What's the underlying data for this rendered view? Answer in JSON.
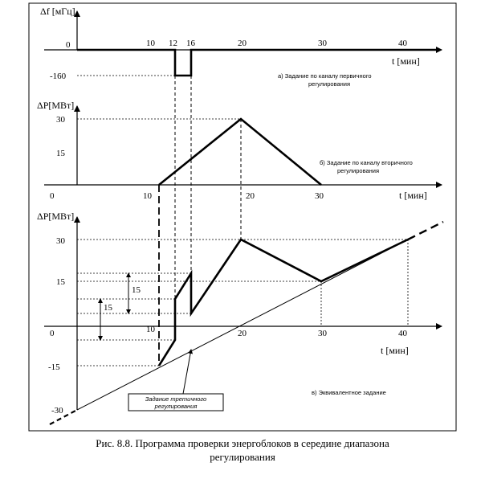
{
  "caption": {
    "line1": "Рис. 8.8. Программа проверки энергоблоков в середине диапазона",
    "line2": "регулирования"
  },
  "chart_data": [
    {
      "id": "a",
      "type": "line",
      "ylabel": "Δf [мГц]",
      "xlabel": "t [мин]",
      "annotation": [
        "а) Задание по каналу первичного",
        "регулирования"
      ],
      "x_ticks": [
        "10",
        "12",
        "16",
        "20",
        "30",
        "40"
      ],
      "y_ticks": [
        "0",
        "-160"
      ],
      "xlim": [
        0,
        45
      ],
      "ylim": [
        -160,
        0
      ],
      "series": [
        {
          "x": [
            0,
            12,
            12,
            14,
            14,
            45
          ],
          "y": [
            0,
            0,
            -160,
            -160,
            0,
            0
          ]
        }
      ]
    },
    {
      "id": "b",
      "type": "line",
      "ylabel": "ΔP[МВт]",
      "xlabel": "t [мин]",
      "annotation": [
        "б) Задание по каналу вторичного",
        "регулирования"
      ],
      "x_ticks": [
        "0",
        "10",
        "20",
        "30"
      ],
      "y_ticks": [
        "30",
        "15"
      ],
      "xlim": [
        0,
        45
      ],
      "ylim": [
        0,
        30
      ],
      "series": [
        {
          "x": [
            10,
            20,
            30
          ],
          "y": [
            0,
            30,
            0
          ]
        }
      ]
    },
    {
      "id": "c",
      "type": "line",
      "ylabel": "ΔP[МВт]",
      "xlabel": "t [мин]",
      "annotation": [
        "в) Эквивалентное задание"
      ],
      "callout": [
        "Задание третичного",
        "регулирования"
      ],
      "x_ticks": [
        "10",
        "20",
        "30",
        "40"
      ],
      "y_ticks": [
        "30",
        "15",
        "0",
        "-15",
        "-30"
      ],
      "dimension_labels": [
        "15",
        "15"
      ],
      "xlim": [
        0,
        45
      ],
      "ylim": [
        -30,
        30
      ],
      "series": [
        {
          "name": "",
          "x": [
            0,
            40
          ],
          "y": [
            -30,
            30
          ]
        },
        {
          "name": "",
          "x": [
            10,
            12,
            12,
            14,
            14,
            20,
            30,
            40
          ],
          "y": [
            -15,
            -6,
            9,
            18,
            3,
            30,
            15,
            30
          ]
        }
      ]
    }
  ]
}
